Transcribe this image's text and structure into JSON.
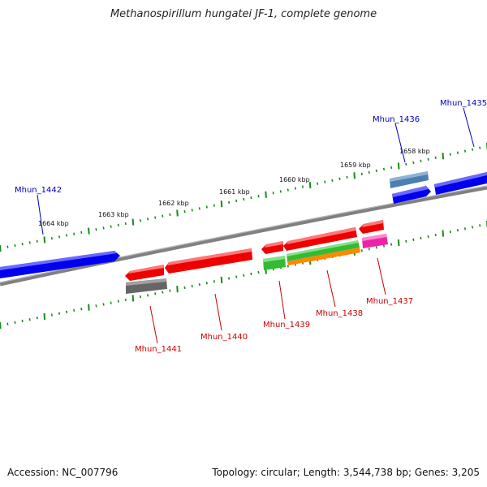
{
  "title": "Methanospirillum hungatei JF-1, complete genome",
  "footer": {
    "accession": "Accession: NC_007796",
    "stats": "Topology: circular; Length: 3,544,738 bp; Genes: 3,205"
  },
  "colors": {
    "backbone": "#808080",
    "tick": "#1a8a1a",
    "forward_gene": "#0000ee",
    "forward_gene_light": "#4a7fb0",
    "reverse_gene": "#ee0000",
    "reverse_gene_gray": "#666666",
    "reverse_gene_green": "#33bb33",
    "reverse_gene_orange": "#ff8800",
    "reverse_gene_pink": "#ee22aa",
    "forward_label": "#0000bb",
    "reverse_label": "#cc0000"
  },
  "kbp_labels": [
    "1664 kbp",
    "1663 kbp",
    "1662 kbp",
    "1661 kbp",
    "1660 kbp",
    "1659 kbp",
    "1658 kbp"
  ],
  "forward_labels": [
    "Mhun_1442",
    "Mhun_1436",
    "Mhun_1435"
  ],
  "reverse_labels": [
    "Mhun_1441",
    "Mhun_1440",
    "Mhun_1439",
    "Mhun_1438",
    "Mhun_1437"
  ]
}
